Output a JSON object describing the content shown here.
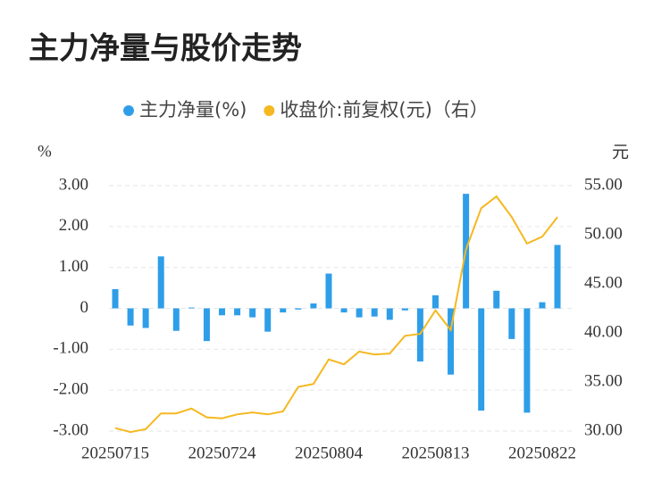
{
  "chart_data": {
    "type": "bar_line",
    "title": "主力净量与股价走势",
    "y_label": "%",
    "y2_label": "元",
    "categories": [
      "20250715",
      null,
      null,
      null,
      null,
      null,
      null,
      "20250724",
      null,
      null,
      null,
      null,
      null,
      null,
      "20250804",
      null,
      null,
      null,
      null,
      null,
      null,
      "20250813",
      null,
      null,
      null,
      null,
      null,
      null,
      "20250822",
      null
    ],
    "series": [
      {
        "name": "主力净量(%)",
        "color": "#2f9ee8",
        "type": "bar",
        "values": [
          0.47,
          -0.42,
          -0.48,
          1.27,
          -0.55,
          0.02,
          -0.8,
          -0.17,
          -0.17,
          -0.22,
          -0.57,
          -0.1,
          -0.03,
          0.12,
          0.85,
          -0.1,
          -0.22,
          -0.2,
          -0.28,
          -0.05,
          -1.3,
          0.32,
          -1.62,
          2.8,
          -2.5,
          0.43,
          -0.75,
          -2.55,
          0.15,
          1.55
        ]
      },
      {
        "name": "收盘价:前复权(元)（右）",
        "color": "#f5b820",
        "type": "line",
        "axis": "y2",
        "values": [
          30.3,
          29.9,
          30.2,
          31.8,
          31.8,
          32.3,
          31.4,
          31.3,
          31.7,
          31.9,
          31.7,
          32.0,
          34.5,
          34.8,
          37.3,
          36.8,
          38.1,
          37.8,
          37.9,
          39.7,
          39.9,
          42.3,
          40.3,
          48.5,
          52.7,
          53.9,
          51.8,
          49.1,
          49.8,
          51.8
        ]
      }
    ],
    "ylim": [
      -3,
      3
    ],
    "yticks": [
      {
        "value": -3,
        "label": "-3.00"
      },
      {
        "value": -2,
        "label": "-2.00"
      },
      {
        "value": -1,
        "label": "-1.00"
      },
      0,
      {
        "value": 1,
        "label": "1.00"
      },
      {
        "value": 2,
        "label": "2.00"
      },
      {
        "value": 3,
        "label": "3.00"
      }
    ],
    "y2lim": [
      30,
      55
    ],
    "y2ticks": [
      {
        "value": 30,
        "label": "30.00"
      },
      {
        "value": 35,
        "label": "35.00"
      },
      {
        "value": 40,
        "label": "40.00"
      },
      {
        "value": 45,
        "label": "45.00"
      },
      {
        "value": 50,
        "label": "50.00"
      },
      {
        "value": 55,
        "label": "55.00"
      }
    ],
    "grid": true,
    "legend": "top"
  }
}
